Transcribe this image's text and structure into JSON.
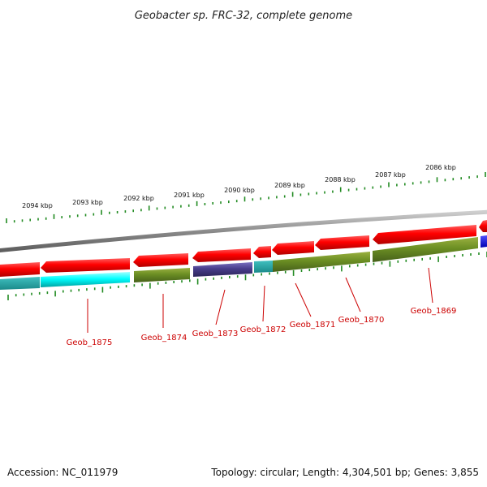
{
  "title": "Geobacter sp. FRC-32, complete genome",
  "footer": {
    "accession": "Accession: NC_011979",
    "summary": "Topology: circular; Length: 4,304,501 bp; Genes: 3,855"
  },
  "ticks": [
    "2094 kbp",
    "2093 kbp",
    "2092 kbp",
    "2091 kbp",
    "2090 kbp",
    "2089 kbp",
    "2088 kbp",
    "2087 kbp",
    "2086 kbp"
  ],
  "genes": [
    "Geob_1875",
    "Geob_1874",
    "Geob_1873",
    "Geob_1872",
    "Geob_1871",
    "Geob_1870",
    "Geob_1869"
  ],
  "colors": {
    "forward_cds": "#ff0000",
    "reverse_a": "#00ffff",
    "reverse_b": "#6b8e23",
    "reverse_c": "#483d8b",
    "edge_blue": "#0000ff",
    "ticks": "#228b22",
    "backbone": "#888888",
    "label": "#cc0000"
  }
}
